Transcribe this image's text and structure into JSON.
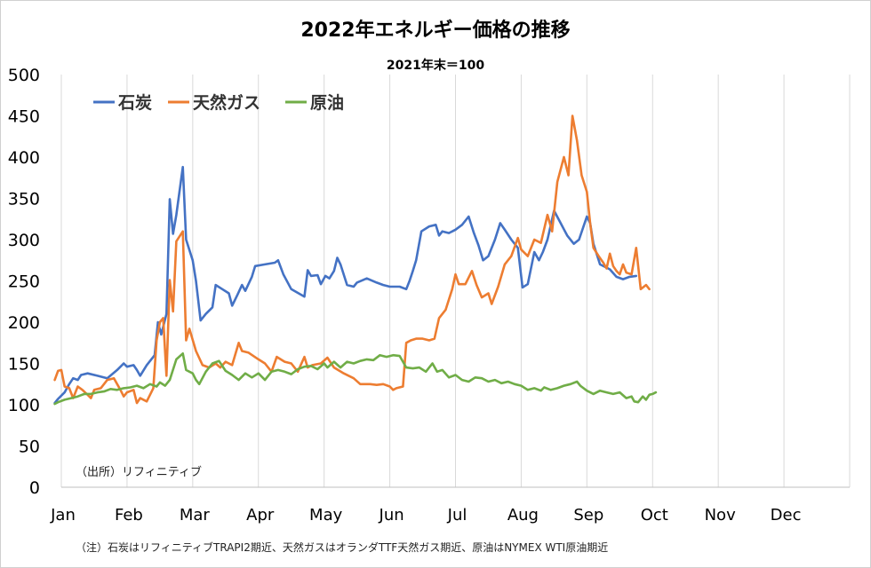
{
  "chart_data": {
    "type": "line",
    "title": "2022年エネルギー価格の推移",
    "subtitle": "2021年末＝100",
    "source": "（出所）リフィニティブ",
    "note": "（注）石炭はリフィニティブTRAPI2期近、天然ガスはオランダTTF天然ガス期近、原油はNYMEX WTI原油期近",
    "ylim": [
      0,
      500
    ],
    "yticks": [
      "0",
      "50",
      "100",
      "150",
      "200",
      "250",
      "300",
      "350",
      "400",
      "450",
      "500"
    ],
    "categories": [
      "Jan",
      "Feb",
      "Mar",
      "Apr",
      "May",
      "Jun",
      "Jul",
      "Aug",
      "Sep",
      "Oct",
      "Nov",
      "Dec"
    ],
    "grid": "vertical",
    "legend_position": "top-left",
    "series": [
      {
        "name": "石炭",
        "color": "#4472c4",
        "points": [
          [
            0.9,
            102
          ],
          [
            0.95,
            107
          ],
          [
            1.05,
            115
          ],
          [
            1.12,
            125
          ],
          [
            1.18,
            132
          ],
          [
            1.25,
            130
          ],
          [
            1.3,
            136
          ],
          [
            1.4,
            138
          ],
          [
            1.55,
            135
          ],
          [
            1.7,
            132
          ],
          [
            1.85,
            142
          ],
          [
            1.95,
            150
          ],
          [
            2.0,
            146
          ],
          [
            2.1,
            148
          ],
          [
            2.15,
            142
          ],
          [
            2.2,
            135
          ],
          [
            2.3,
            148
          ],
          [
            2.42,
            160
          ],
          [
            2.47,
            200
          ],
          [
            2.52,
            185
          ],
          [
            2.6,
            210
          ],
          [
            2.65,
            349
          ],
          [
            2.7,
            307
          ],
          [
            2.75,
            330
          ],
          [
            2.85,
            388
          ],
          [
            2.9,
            300
          ],
          [
            3.0,
            275
          ],
          [
            3.05,
            250
          ],
          [
            3.12,
            202
          ],
          [
            3.2,
            210
          ],
          [
            3.3,
            218
          ],
          [
            3.35,
            245
          ],
          [
            3.45,
            240
          ],
          [
            3.55,
            235
          ],
          [
            3.6,
            220
          ],
          [
            3.68,
            233
          ],
          [
            3.75,
            245
          ],
          [
            3.8,
            238
          ],
          [
            3.9,
            255
          ],
          [
            3.95,
            268
          ],
          [
            4.1,
            270
          ],
          [
            4.25,
            272
          ],
          [
            4.3,
            275
          ],
          [
            4.38,
            258
          ],
          [
            4.5,
            240
          ],
          [
            4.7,
            231
          ],
          [
            4.75,
            263
          ],
          [
            4.8,
            256
          ],
          [
            4.9,
            257
          ],
          [
            4.95,
            246
          ],
          [
            5.02,
            256
          ],
          [
            5.08,
            253
          ],
          [
            5.15,
            262
          ],
          [
            5.2,
            278
          ],
          [
            5.25,
            270
          ],
          [
            5.35,
            245
          ],
          [
            5.45,
            243
          ],
          [
            5.5,
            248
          ],
          [
            5.65,
            253
          ],
          [
            5.8,
            248
          ],
          [
            5.9,
            245
          ],
          [
            6.0,
            243
          ],
          [
            6.15,
            243
          ],
          [
            6.25,
            240
          ],
          [
            6.3,
            250
          ],
          [
            6.35,
            262
          ],
          [
            6.4,
            275
          ],
          [
            6.48,
            310
          ],
          [
            6.6,
            316
          ],
          [
            6.7,
            318
          ],
          [
            6.75,
            305
          ],
          [
            6.8,
            310
          ],
          [
            6.9,
            308
          ],
          [
            7.0,
            312
          ],
          [
            7.1,
            318
          ],
          [
            7.2,
            328
          ],
          [
            7.28,
            308
          ],
          [
            7.35,
            293
          ],
          [
            7.42,
            275
          ],
          [
            7.5,
            280
          ],
          [
            7.6,
            300
          ],
          [
            7.68,
            320
          ],
          [
            7.75,
            312
          ],
          [
            7.85,
            300
          ],
          [
            7.95,
            290
          ],
          [
            8.02,
            242
          ],
          [
            8.1,
            246
          ],
          [
            8.2,
            285
          ],
          [
            8.27,
            275
          ],
          [
            8.33,
            285
          ],
          [
            8.4,
            300
          ],
          [
            8.5,
            335
          ],
          [
            8.6,
            320
          ],
          [
            8.7,
            305
          ],
          [
            8.8,
            295
          ],
          [
            8.88,
            300
          ],
          [
            9.0,
            328
          ],
          [
            9.05,
            320
          ],
          [
            9.1,
            295
          ],
          [
            9.2,
            270
          ],
          [
            9.35,
            264
          ],
          [
            9.45,
            255
          ],
          [
            9.55,
            252
          ],
          [
            9.65,
            255
          ],
          [
            9.75,
            256
          ]
        ]
      },
      {
        "name": "天然ガス",
        "color": "#ed7d31",
        "points": [
          [
            0.9,
            130
          ],
          [
            0.95,
            141
          ],
          [
            1.0,
            142
          ],
          [
            1.05,
            122
          ],
          [
            1.12,
            120
          ],
          [
            1.18,
            108
          ],
          [
            1.25,
            122
          ],
          [
            1.32,
            118
          ],
          [
            1.4,
            112
          ],
          [
            1.45,
            108
          ],
          [
            1.5,
            118
          ],
          [
            1.6,
            120
          ],
          [
            1.7,
            130
          ],
          [
            1.8,
            132
          ],
          [
            1.9,
            118
          ],
          [
            1.95,
            110
          ],
          [
            2.0,
            115
          ],
          [
            2.1,
            118
          ],
          [
            2.15,
            102
          ],
          [
            2.2,
            108
          ],
          [
            2.3,
            104
          ],
          [
            2.4,
            120
          ],
          [
            2.45,
            178
          ],
          [
            2.5,
            200
          ],
          [
            2.55,
            205
          ],
          [
            2.6,
            135
          ],
          [
            2.65,
            251
          ],
          [
            2.7,
            213
          ],
          [
            2.75,
            298
          ],
          [
            2.85,
            310
          ],
          [
            2.9,
            178
          ],
          [
            2.95,
            192
          ],
          [
            3.05,
            165
          ],
          [
            3.15,
            148
          ],
          [
            3.25,
            145
          ],
          [
            3.35,
            150
          ],
          [
            3.42,
            145
          ],
          [
            3.5,
            152
          ],
          [
            3.6,
            148
          ],
          [
            3.7,
            175
          ],
          [
            3.75,
            165
          ],
          [
            3.85,
            163
          ],
          [
            4.0,
            155
          ],
          [
            4.1,
            150
          ],
          [
            4.2,
            140
          ],
          [
            4.28,
            158
          ],
          [
            4.4,
            152
          ],
          [
            4.5,
            150
          ],
          [
            4.6,
            140
          ],
          [
            4.7,
            158
          ],
          [
            4.75,
            145
          ],
          [
            4.82,
            148
          ],
          [
            4.95,
            150
          ],
          [
            5.05,
            157
          ],
          [
            5.15,
            145
          ],
          [
            5.3,
            138
          ],
          [
            5.45,
            132
          ],
          [
            5.55,
            125
          ],
          [
            5.7,
            125
          ],
          [
            5.8,
            124
          ],
          [
            5.9,
            125
          ],
          [
            6.0,
            122
          ],
          [
            6.05,
            118
          ],
          [
            6.1,
            120
          ],
          [
            6.2,
            122
          ],
          [
            6.25,
            175
          ],
          [
            6.32,
            178
          ],
          [
            6.4,
            180
          ],
          [
            6.5,
            180
          ],
          [
            6.6,
            178
          ],
          [
            6.68,
            180
          ],
          [
            6.75,
            205
          ],
          [
            6.85,
            215
          ],
          [
            6.95,
            240
          ],
          [
            7.0,
            258
          ],
          [
            7.05,
            246
          ],
          [
            7.15,
            246
          ],
          [
            7.25,
            262
          ],
          [
            7.32,
            245
          ],
          [
            7.4,
            230
          ],
          [
            7.5,
            235
          ],
          [
            7.55,
            222
          ],
          [
            7.65,
            243
          ],
          [
            7.75,
            270
          ],
          [
            7.85,
            280
          ],
          [
            7.95,
            302
          ],
          [
            8.0,
            288
          ],
          [
            8.1,
            280
          ],
          [
            8.2,
            300
          ],
          [
            8.3,
            296
          ],
          [
            8.4,
            330
          ],
          [
            8.47,
            310
          ],
          [
            8.55,
            370
          ],
          [
            8.65,
            400
          ],
          [
            8.72,
            378
          ],
          [
            8.78,
            450
          ],
          [
            8.85,
            420
          ],
          [
            8.92,
            378
          ],
          [
            9.0,
            358
          ],
          [
            9.05,
            320
          ],
          [
            9.1,
            290
          ],
          [
            9.18,
            280
          ],
          [
            9.25,
            272
          ],
          [
            9.3,
            265
          ],
          [
            9.35,
            283
          ],
          [
            9.4,
            268
          ],
          [
            9.45,
            262
          ],
          [
            9.5,
            258
          ],
          [
            9.55,
            270
          ],
          [
            9.6,
            260
          ],
          [
            9.68,
            258
          ],
          [
            9.75,
            290
          ],
          [
            9.82,
            240
          ],
          [
            9.9,
            245
          ],
          [
            9.95,
            240
          ]
        ]
      },
      {
        "name": "原油",
        "color": "#70ad47",
        "points": [
          [
            0.9,
            101
          ],
          [
            0.95,
            103
          ],
          [
            1.05,
            106
          ],
          [
            1.15,
            108
          ],
          [
            1.25,
            110
          ],
          [
            1.35,
            113
          ],
          [
            1.45,
            113
          ],
          [
            1.55,
            115
          ],
          [
            1.65,
            116
          ],
          [
            1.75,
            119
          ],
          [
            1.85,
            118
          ],
          [
            1.95,
            120
          ],
          [
            2.05,
            121
          ],
          [
            2.15,
            123
          ],
          [
            2.25,
            120
          ],
          [
            2.35,
            125
          ],
          [
            2.45,
            122
          ],
          [
            2.5,
            127
          ],
          [
            2.58,
            123
          ],
          [
            2.65,
            130
          ],
          [
            2.75,
            155
          ],
          [
            2.85,
            162
          ],
          [
            2.9,
            142
          ],
          [
            3.0,
            138
          ],
          [
            3.05,
            130
          ],
          [
            3.1,
            125
          ],
          [
            3.2,
            140
          ],
          [
            3.3,
            150
          ],
          [
            3.4,
            153
          ],
          [
            3.5,
            141
          ],
          [
            3.6,
            136
          ],
          [
            3.7,
            130
          ],
          [
            3.8,
            138
          ],
          [
            3.9,
            133
          ],
          [
            4.0,
            138
          ],
          [
            4.1,
            130
          ],
          [
            4.2,
            140
          ],
          [
            4.3,
            142
          ],
          [
            4.4,
            140
          ],
          [
            4.5,
            137
          ],
          [
            4.6,
            143
          ],
          [
            4.7,
            146
          ],
          [
            4.8,
            147
          ],
          [
            4.9,
            143
          ],
          [
            5.0,
            150
          ],
          [
            5.05,
            145
          ],
          [
            5.15,
            152
          ],
          [
            5.25,
            145
          ],
          [
            5.35,
            152
          ],
          [
            5.45,
            150
          ],
          [
            5.55,
            153
          ],
          [
            5.65,
            155
          ],
          [
            5.75,
            154
          ],
          [
            5.85,
            160
          ],
          [
            5.95,
            158
          ],
          [
            6.05,
            160
          ],
          [
            6.15,
            159
          ],
          [
            6.25,
            145
          ],
          [
            6.35,
            144
          ],
          [
            6.45,
            145
          ],
          [
            6.55,
            140
          ],
          [
            6.6,
            145
          ],
          [
            6.65,
            150
          ],
          [
            6.72,
            140
          ],
          [
            6.8,
            142
          ],
          [
            6.9,
            133
          ],
          [
            7.0,
            136
          ],
          [
            7.1,
            130
          ],
          [
            7.2,
            128
          ],
          [
            7.3,
            133
          ],
          [
            7.4,
            132
          ],
          [
            7.5,
            128
          ],
          [
            7.6,
            130
          ],
          [
            7.7,
            126
          ],
          [
            7.8,
            128
          ],
          [
            7.9,
            125
          ],
          [
            8.0,
            123
          ],
          [
            8.1,
            118
          ],
          [
            8.2,
            120
          ],
          [
            8.3,
            117
          ],
          [
            8.35,
            121
          ],
          [
            8.45,
            118
          ],
          [
            8.55,
            120
          ],
          [
            8.65,
            123
          ],
          [
            8.75,
            125
          ],
          [
            8.85,
            128
          ],
          [
            8.9,
            123
          ],
          [
            9.0,
            117
          ],
          [
            9.1,
            113
          ],
          [
            9.2,
            117
          ],
          [
            9.3,
            115
          ],
          [
            9.4,
            113
          ],
          [
            9.5,
            115
          ],
          [
            9.6,
            108
          ],
          [
            9.68,
            110
          ],
          [
            9.72,
            104
          ],
          [
            9.78,
            103
          ],
          [
            9.85,
            110
          ],
          [
            9.9,
            106
          ],
          [
            9.95,
            112
          ],
          [
            10.0,
            113
          ],
          [
            10.05,
            115
          ]
        ]
      }
    ]
  }
}
